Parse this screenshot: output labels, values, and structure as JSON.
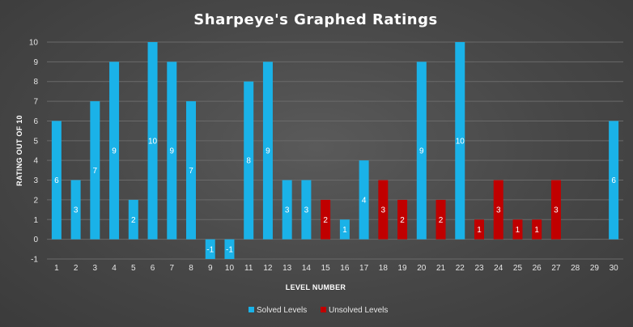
{
  "chart_data": {
    "type": "bar",
    "title": "Sharpeye's Graphed Ratings",
    "xlabel": "LEVEL NUMBER",
    "ylabel": "RATING OUT OF 10",
    "ylim": [
      -1,
      10
    ],
    "yticks": [
      -1,
      0,
      1,
      2,
      3,
      4,
      5,
      6,
      7,
      8,
      9,
      10
    ],
    "grid": true,
    "legend_position": "bottom",
    "categories": [
      "1",
      "2",
      "3",
      "4",
      "5",
      "6",
      "7",
      "8",
      "9",
      "10",
      "11",
      "12",
      "13",
      "14",
      "15",
      "16",
      "17",
      "18",
      "19",
      "20",
      "21",
      "22",
      "23",
      "24",
      "25",
      "26",
      "27",
      "28",
      "29",
      "30"
    ],
    "series": [
      {
        "name": "Solved Levels",
        "color": "#1ab2e8",
        "values": [
          6,
          3,
          7,
          9,
          2,
          10,
          9,
          7,
          -1,
          -1,
          8,
          9,
          3,
          3,
          null,
          1,
          4,
          null,
          null,
          9,
          null,
          10,
          null,
          null,
          null,
          null,
          null,
          null,
          null,
          6
        ]
      },
      {
        "name": "Unsolved Levels",
        "color": "#c00000",
        "values": [
          null,
          null,
          null,
          null,
          null,
          null,
          null,
          null,
          null,
          null,
          null,
          null,
          null,
          null,
          2,
          null,
          null,
          3,
          2,
          null,
          2,
          null,
          1,
          3,
          1,
          1,
          3,
          null,
          null,
          null
        ]
      }
    ]
  }
}
